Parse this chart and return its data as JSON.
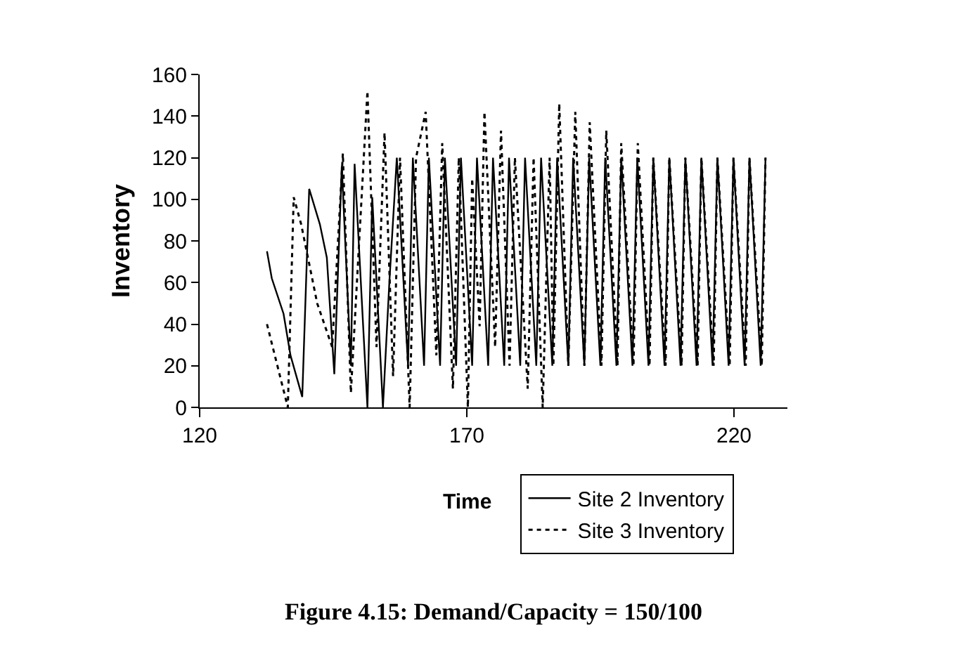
{
  "chart_data": {
    "type": "line",
    "title": "Figure 4.15: Demand/Capacity = 150/100",
    "xlabel": "Time",
    "ylabel": "Inventory",
    "xlim": [
      120,
      230
    ],
    "xticks": [
      120,
      170,
      220
    ],
    "ylim": [
      0,
      160
    ],
    "yticks": [
      0,
      20,
      40,
      60,
      80,
      100,
      120,
      140,
      160
    ],
    "legend": "bottom right",
    "marker": "none",
    "series": [
      {
        "name": "Site 2 Inventory",
        "color": "#000000",
        "line_style": "solid",
        "x": [
          132.6,
          133.5,
          135.7,
          137,
          139.2,
          140.5,
          142.5,
          143.8,
          145.2,
          146.6,
          148.3,
          149,
          151.4,
          152.3,
          154.3,
          155.5,
          156.9,
          159.0,
          159.9,
          162.0,
          162.9,
          165.0,
          165.9,
          168.0,
          168.9,
          171.0,
          171.9,
          174.0,
          174.9,
          177.0,
          177.9,
          180.0,
          180.9,
          183.0,
          183.9,
          186.0,
          186.9,
          189.0,
          189.9,
          192.0,
          192.9,
          195.0,
          195.9,
          198.0,
          198.9,
          201.0,
          201.9,
          204.0,
          204.9,
          207.0,
          207.9,
          210.0,
          210.9,
          213.0,
          213.9,
          216.0,
          216.9,
          219.0,
          219.9,
          222.0,
          222.9,
          225.0,
          225.9
        ],
        "values": [
          75,
          62,
          45,
          25,
          5,
          105,
          88,
          72,
          16,
          116,
          20,
          117,
          0,
          101,
          0,
          60,
          120,
          20,
          120,
          20,
          120,
          20,
          120,
          20,
          120,
          20,
          120,
          20,
          120,
          20,
          120,
          20,
          120,
          20,
          120,
          20,
          120,
          20,
          120,
          20,
          120,
          20,
          120,
          20,
          120,
          20,
          120,
          20,
          120,
          20,
          120,
          20,
          120,
          20,
          120,
          20,
          120,
          20,
          120,
          20,
          120,
          20,
          120
        ]
      },
      {
        "name": "Site 3 Inventory",
        "color": "#000000",
        "line_style": "dotted",
        "x": [
          132.6,
          136.5,
          137.6,
          139,
          142,
          144.8,
          146.8,
          148.3,
          151.4,
          153.1,
          154.6,
          156.2,
          157.5,
          159.3,
          160.5,
          162.3,
          164.3,
          165.4,
          167.4,
          168.5,
          170.2,
          171,
          172.4,
          173.3,
          175.3,
          176.4,
          178,
          179,
          181.4,
          182.5,
          184.2,
          185.5,
          186.2,
          187.3,
          189,
          190.3,
          192,
          193,
          195.2,
          196.1,
          198.2,
          198.9,
          201.2,
          202,
          204.2,
          204.9,
          207.2,
          207.9,
          210.2,
          210.9,
          213.2,
          213.9,
          216.2,
          216.9,
          219.2,
          219.9,
          222.2,
          222.9,
          225.2,
          225.9
        ],
        "values": [
          40,
          0,
          101,
          88,
          50,
          29,
          122,
          7,
          152,
          29,
          132,
          15,
          120,
          0,
          120,
          142,
          25,
          127,
          9,
          120,
          0,
          110,
          39,
          142,
          29,
          133,
          20,
          120,
          9,
          120,
          0,
          120,
          20,
          146,
          20,
          142,
          20,
          137,
          20,
          133,
          20,
          127,
          20,
          127,
          20,
          120,
          20,
          120,
          20,
          120,
          20,
          120,
          20,
          120,
          20,
          120,
          20,
          120,
          20,
          120
        ]
      }
    ]
  }
}
